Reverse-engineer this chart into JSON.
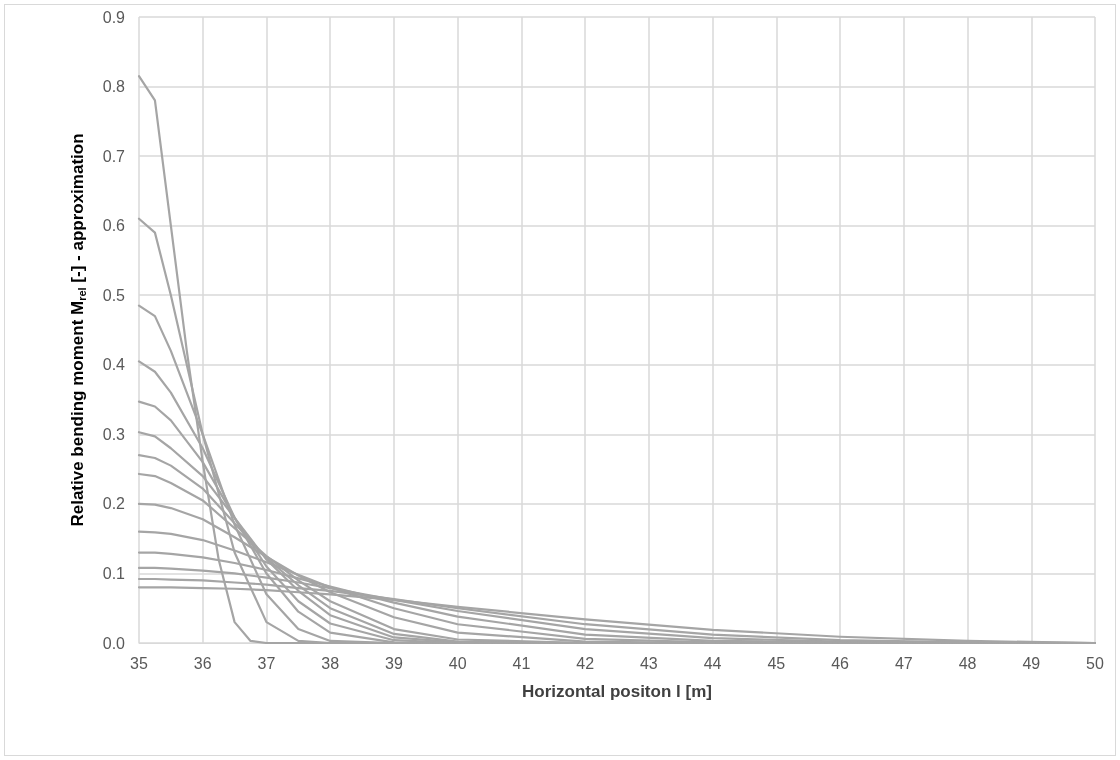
{
  "chart_data": {
    "type": "line",
    "xlabel": "Horizontal positon l [m]",
    "ylabel": "Relative bending moment M$_{rel}$ [-] - approximation",
    "x": [
      35,
      35.25,
      35.5,
      36,
      36.5,
      37,
      37.5,
      38,
      39,
      40,
      42,
      44,
      46,
      48,
      50
    ],
    "xlim": [
      35,
      50
    ],
    "xticks": [
      35,
      36,
      37,
      38,
      39,
      40,
      41,
      42,
      43,
      44,
      45,
      46,
      47,
      48,
      49,
      50
    ],
    "ylim": [
      0,
      0.9
    ],
    "yticks": [
      {
        "value": 0,
        "label": "0.0"
      },
      {
        "value": 0.1,
        "label": "0.1"
      },
      {
        "value": 0.2,
        "label": "0.2"
      },
      {
        "value": 0.3,
        "label": "0.3"
      },
      {
        "value": 0.4,
        "label": "0.4"
      },
      {
        "value": 0.5,
        "label": "0.5"
      },
      {
        "value": 0.6,
        "label": "0.6"
      },
      {
        "value": 0.7,
        "label": "0.7"
      },
      {
        "value": 0.8,
        "label": "0.8"
      },
      {
        "value": 0.9,
        "label": "0.9"
      }
    ],
    "grid": true,
    "marker": "none",
    "line_style": "solid",
    "series": [
      {
        "color": "#a5a5a5",
        "x": [
          35,
          35.25,
          35.5,
          35.75,
          36,
          36.25,
          36.5,
          36.75,
          37,
          38,
          50
        ],
        "values": [
          0.815,
          0.78,
          0.6,
          0.42,
          0.26,
          0.12,
          0.03,
          0.003,
          0,
          0,
          0
        ]
      },
      {
        "color": "#a5a5a5",
        "values": [
          0.61,
          0.59,
          0.5,
          0.3,
          0.13,
          0.03,
          0.003,
          0,
          0,
          0,
          0,
          0,
          0,
          0,
          0
        ]
      },
      {
        "color": "#a5a5a5",
        "values": [
          0.485,
          0.47,
          0.42,
          0.3,
          0.17,
          0.07,
          0.02,
          0.003,
          0,
          0,
          0,
          0,
          0,
          0,
          0
        ]
      },
      {
        "color": "#a5a5a5",
        "values": [
          0.405,
          0.39,
          0.36,
          0.28,
          0.18,
          0.1,
          0.045,
          0.015,
          0.001,
          0,
          0,
          0,
          0,
          0,
          0
        ]
      },
      {
        "color": "#a5a5a5",
        "values": [
          0.347,
          0.34,
          0.32,
          0.26,
          0.18,
          0.11,
          0.06,
          0.028,
          0.004,
          0,
          0,
          0,
          0,
          0,
          0
        ]
      },
      {
        "color": "#a5a5a5",
        "values": [
          0.303,
          0.297,
          0.28,
          0.24,
          0.18,
          0.12,
          0.075,
          0.04,
          0.008,
          0.001,
          0,
          0,
          0,
          0,
          0
        ]
      },
      {
        "color": "#a5a5a5",
        "values": [
          0.27,
          0.266,
          0.255,
          0.222,
          0.172,
          0.122,
          0.083,
          0.05,
          0.013,
          0.002,
          0,
          0,
          0,
          0,
          0
        ]
      },
      {
        "color": "#a5a5a5",
        "values": [
          0.243,
          0.24,
          0.23,
          0.205,
          0.165,
          0.125,
          0.09,
          0.06,
          0.02,
          0.005,
          0,
          0,
          0,
          0,
          0
        ]
      },
      {
        "color": "#a5a5a5",
        "values": [
          0.2,
          0.199,
          0.194,
          0.178,
          0.152,
          0.124,
          0.097,
          0.073,
          0.037,
          0.015,
          0.002,
          0,
          0,
          0,
          0
        ]
      },
      {
        "color": "#a5a5a5",
        "values": [
          0.16,
          0.159,
          0.157,
          0.148,
          0.133,
          0.116,
          0.098,
          0.08,
          0.05,
          0.027,
          0.006,
          0.001,
          0,
          0,
          0
        ]
      },
      {
        "color": "#a5a5a5",
        "values": [
          0.13,
          0.13,
          0.128,
          0.123,
          0.115,
          0.105,
          0.093,
          0.081,
          0.058,
          0.038,
          0.012,
          0.003,
          0.001,
          0,
          0
        ]
      },
      {
        "color": "#a5a5a5",
        "values": [
          0.108,
          0.108,
          0.107,
          0.104,
          0.1,
          0.094,
          0.087,
          0.079,
          0.062,
          0.046,
          0.02,
          0.007,
          0.002,
          0.001,
          0
        ]
      },
      {
        "color": "#a5a5a5",
        "values": [
          0.092,
          0.092,
          0.091,
          0.09,
          0.087,
          0.084,
          0.079,
          0.075,
          0.063,
          0.05,
          0.027,
          0.012,
          0.004,
          0.001,
          0
        ]
      },
      {
        "color": "#a5a5a5",
        "values": [
          0.08,
          0.08,
          0.08,
          0.079,
          0.078,
          0.076,
          0.073,
          0.07,
          0.062,
          0.052,
          0.034,
          0.019,
          0.009,
          0.003,
          0
        ]
      }
    ]
  }
}
